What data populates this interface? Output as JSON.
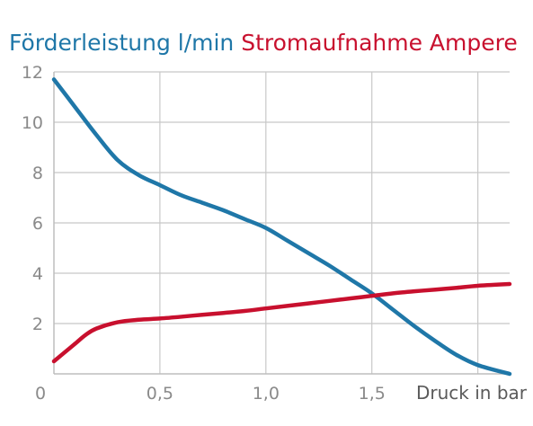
{
  "chart_data": {
    "type": "line",
    "title_parts": [
      {
        "text": "Förderleistung l/min",
        "color": "#1f77a8"
      },
      {
        "text": "Stromaufnahme Ampere",
        "color": "#c8102e"
      }
    ],
    "xlabel": "Druck in bar",
    "ylabel": "",
    "xlim": [
      0,
      2.15
    ],
    "ylim": [
      0,
      12
    ],
    "x_ticks": [
      {
        "value": 0,
        "label": "0"
      },
      {
        "value": 0.5,
        "label": "0,5"
      },
      {
        "value": 1.0,
        "label": "1,0"
      },
      {
        "value": 1.5,
        "label": "1,5"
      }
    ],
    "x_grid": [
      0.5,
      1.0,
      1.5,
      2.0
    ],
    "y_ticks": [
      {
        "value": 2,
        "label": "2"
      },
      {
        "value": 4,
        "label": "4"
      },
      {
        "value": 6,
        "label": "6"
      },
      {
        "value": 8,
        "label": "8"
      },
      {
        "value": 10,
        "label": "10"
      },
      {
        "value": 12,
        "label": "12"
      }
    ],
    "grid": true,
    "colors": {
      "grid": "#c8c8c8",
      "axis": "#bdbdbd",
      "flow": "#1f77a8",
      "current": "#c8102e"
    },
    "series": [
      {
        "name": "Förderleistung l/min",
        "color": "#1f77a8",
        "points": [
          [
            0,
            11.7
          ],
          [
            0.1,
            10.6
          ],
          [
            0.2,
            9.5
          ],
          [
            0.3,
            8.5
          ],
          [
            0.4,
            7.9
          ],
          [
            0.5,
            7.5
          ],
          [
            0.6,
            7.1
          ],
          [
            0.7,
            6.8
          ],
          [
            0.8,
            6.5
          ],
          [
            0.9,
            6.15
          ],
          [
            1.0,
            5.8
          ],
          [
            1.1,
            5.3
          ],
          [
            1.2,
            4.8
          ],
          [
            1.3,
            4.3
          ],
          [
            1.4,
            3.75
          ],
          [
            1.5,
            3.2
          ],
          [
            1.6,
            2.55
          ],
          [
            1.7,
            1.9
          ],
          [
            1.8,
            1.3
          ],
          [
            1.9,
            0.75
          ],
          [
            2.0,
            0.35
          ],
          [
            2.15,
            0.0
          ]
        ]
      },
      {
        "name": "Stromaufnahme Ampere",
        "color": "#c8102e",
        "points": [
          [
            0,
            0.5
          ],
          [
            0.05,
            0.85
          ],
          [
            0.1,
            1.2
          ],
          [
            0.15,
            1.55
          ],
          [
            0.2,
            1.8
          ],
          [
            0.3,
            2.05
          ],
          [
            0.4,
            2.15
          ],
          [
            0.5,
            2.2
          ],
          [
            0.6,
            2.27
          ],
          [
            0.7,
            2.35
          ],
          [
            0.8,
            2.42
          ],
          [
            0.9,
            2.5
          ],
          [
            1.0,
            2.6
          ],
          [
            1.1,
            2.7
          ],
          [
            1.2,
            2.8
          ],
          [
            1.3,
            2.9
          ],
          [
            1.4,
            3.0
          ],
          [
            1.5,
            3.1
          ],
          [
            1.6,
            3.2
          ],
          [
            1.7,
            3.28
          ],
          [
            1.8,
            3.35
          ],
          [
            1.9,
            3.42
          ],
          [
            2.0,
            3.5
          ],
          [
            2.15,
            3.57
          ]
        ]
      }
    ]
  }
}
